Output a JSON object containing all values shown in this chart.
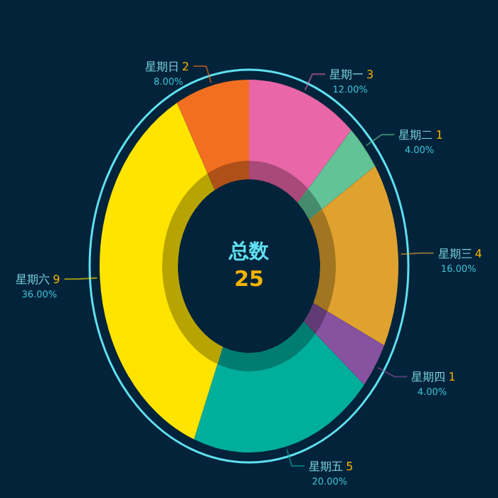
{
  "chart_data": {
    "type": "donut",
    "title": "总数",
    "annotations": [
      "25",
      "12.00%",
      "4.00%",
      "16.00%",
      "4.00%",
      "20.00%",
      "36.00%",
      "8.00%"
    ],
    "categories": [
      "星期一",
      "星期二",
      "星期三",
      "星期四",
      "星期五",
      "星期六",
      "星期日"
    ],
    "values": [
      3,
      1,
      4,
      1,
      5,
      9,
      2
    ],
    "colors": [
      "#e966a8",
      "#62c396",
      "#e0a22e",
      "#8752a0",
      "#00ae9c",
      "#ffe400",
      "#f26f22"
    ],
    "data_labels": true
  }
}
